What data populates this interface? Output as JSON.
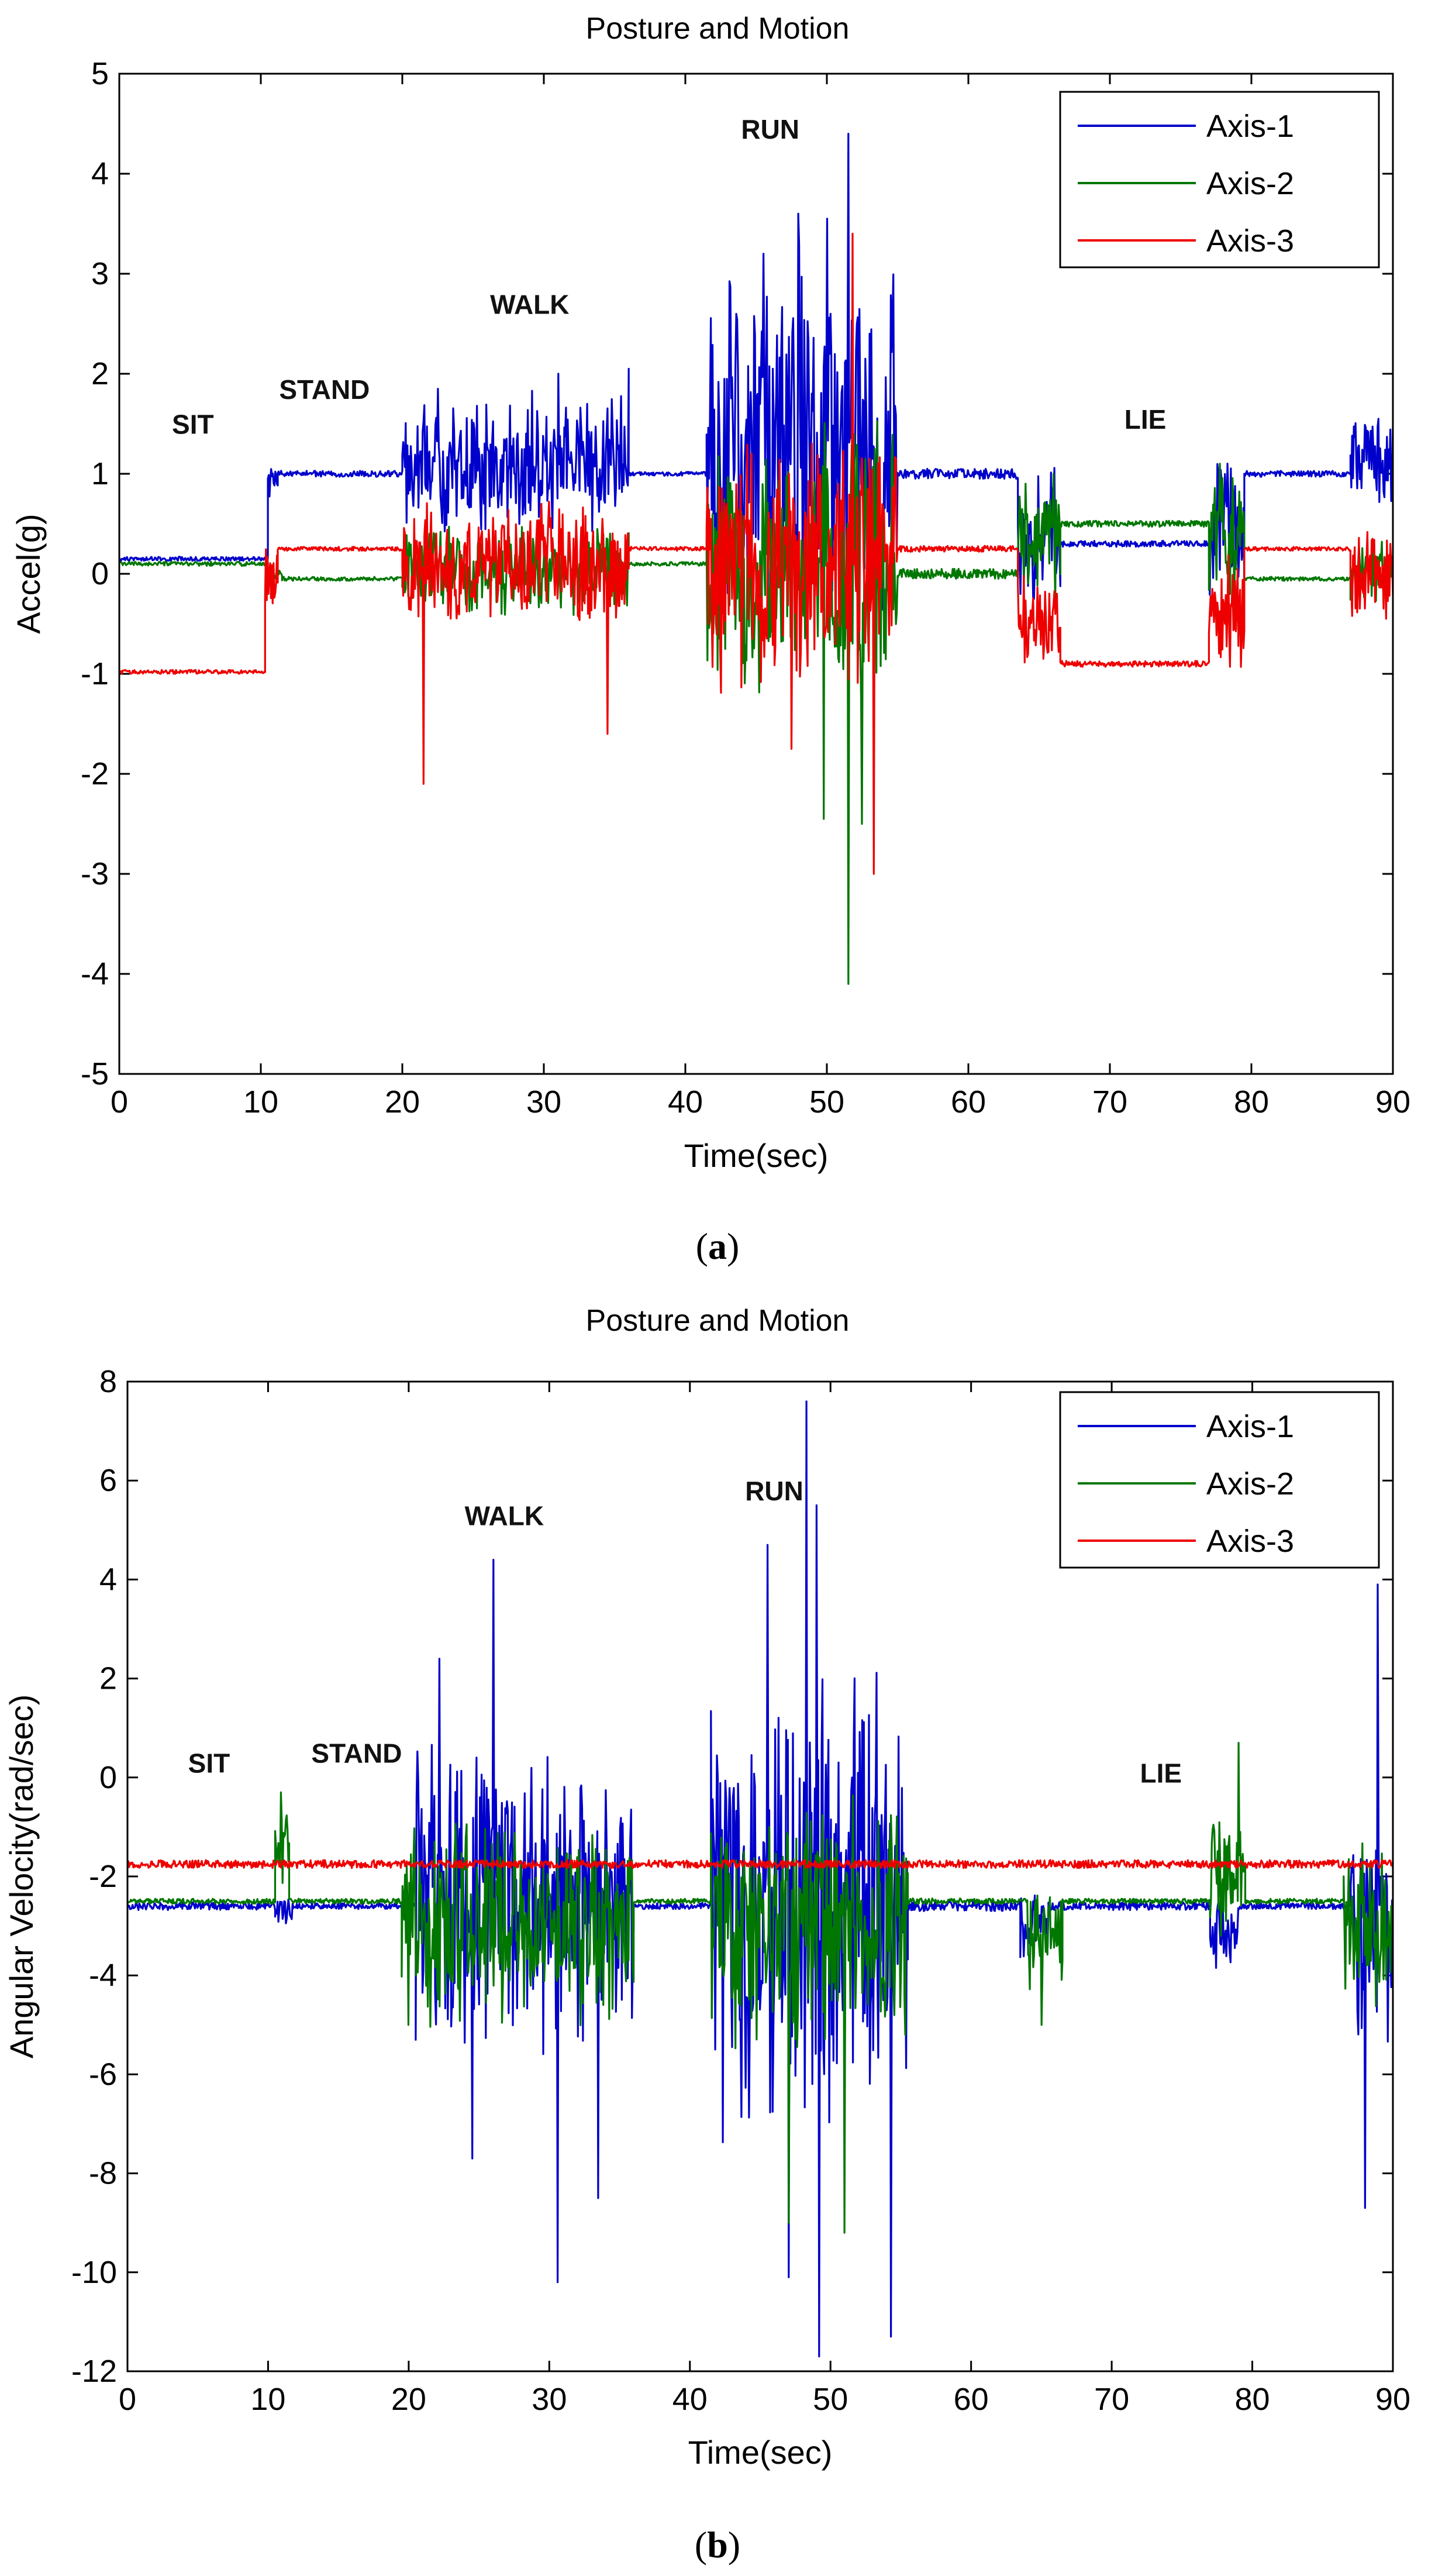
{
  "chart_data": [
    {
      "type": "line",
      "panel": "a",
      "caption_open": "(",
      "caption_letter": "a",
      "caption_close": ")",
      "title": "Posture and Motion",
      "xlabel": "Time(sec)",
      "ylabel": "Accel(g)",
      "xlim": [
        0,
        90
      ],
      "ylim": [
        -5,
        5
      ],
      "xticks": [
        0,
        10,
        20,
        30,
        40,
        50,
        60,
        70,
        80,
        90
      ],
      "yticks": [
        -5,
        -4,
        -3,
        -2,
        -1,
        0,
        1,
        2,
        3,
        4,
        5
      ],
      "legend_position": "top-right",
      "annotations": [
        {
          "text": "SIT",
          "x": 5.2,
          "y": 1.4
        },
        {
          "text": "STAND",
          "x": 14.5,
          "y": 1.75
        },
        {
          "text": "WALK",
          "x": 29,
          "y": 2.6
        },
        {
          "text": "RUN",
          "x": 46,
          "y": 4.35
        },
        {
          "text": "LIE",
          "x": 72.5,
          "y": 1.45
        }
      ],
      "series": [
        {
          "name": "Axis-1",
          "color": "#0000cc",
          "segments": [
            {
              "x0": 0,
              "x1": 10.5,
              "base": 0.15,
              "amp": 0.02
            },
            {
              "x0": 10.5,
              "x1": 11.2,
              "base": 0.9,
              "amp": 0.15
            },
            {
              "x0": 11.2,
              "x1": 20,
              "base": 1.0,
              "amp": 0.03
            },
            {
              "x0": 20,
              "x1": 36,
              "base": 1.05,
              "amp": 0.8
            },
            {
              "x0": 36,
              "x1": 41.5,
              "base": 1.0,
              "amp": 0.02
            },
            {
              "x0": 41.5,
              "x1": 55,
              "base": 1.3,
              "amp": 2.2
            },
            {
              "x0": 55,
              "x1": 63.5,
              "base": 1.0,
              "amp": 0.05
            },
            {
              "x0": 63.5,
              "x1": 66.5,
              "base": 0.3,
              "amp": 0.8
            },
            {
              "x0": 66.5,
              "x1": 77,
              "base": 0.3,
              "amp": 0.03
            },
            {
              "x0": 77,
              "x1": 79.5,
              "base": 0.5,
              "amp": 0.8
            },
            {
              "x0": 79.5,
              "x1": 87,
              "base": 1.0,
              "amp": 0.03
            },
            {
              "x0": 87,
              "x1": 90,
              "base": 1.1,
              "amp": 0.5
            }
          ],
          "spikes": [
            [
              51.5,
              4.4
            ],
            [
              50,
              3.55
            ],
            [
              48,
              3.6
            ],
            [
              45.5,
              3.2
            ],
            [
              53,
              2.4
            ],
            [
              36,
              2.05
            ],
            [
              22.5,
              1.85
            ],
            [
              31,
              2.0
            ],
            [
              89,
              1.55
            ]
          ]
        },
        {
          "name": "Axis-2",
          "color": "#007700",
          "segments": [
            {
              "x0": 0,
              "x1": 10.5,
              "base": 0.1,
              "amp": 0.02
            },
            {
              "x0": 10.5,
              "x1": 11.5,
              "base": 0.0,
              "amp": 0.05
            },
            {
              "x0": 11.5,
              "x1": 20,
              "base": -0.05,
              "amp": 0.02
            },
            {
              "x0": 20,
              "x1": 36,
              "base": 0.05,
              "amp": 0.5
            },
            {
              "x0": 36,
              "x1": 41.5,
              "base": 0.1,
              "amp": 0.02
            },
            {
              "x0": 41.5,
              "x1": 55,
              "base": 0.1,
              "amp": 1.5
            },
            {
              "x0": 55,
              "x1": 63.5,
              "base": 0.0,
              "amp": 0.05
            },
            {
              "x0": 63.5,
              "x1": 66.5,
              "base": 0.3,
              "amp": 0.7
            },
            {
              "x0": 66.5,
              "x1": 77,
              "base": 0.5,
              "amp": 0.03
            },
            {
              "x0": 77,
              "x1": 79.5,
              "base": 0.3,
              "amp": 0.8
            },
            {
              "x0": 79.5,
              "x1": 87,
              "base": -0.05,
              "amp": 0.02
            },
            {
              "x0": 87,
              "x1": 90,
              "base": 0.05,
              "amp": 0.4
            }
          ],
          "spikes": [
            [
              51.5,
              -4.1
            ],
            [
              49.8,
              -2.45
            ],
            [
              52.5,
              -2.5
            ],
            [
              77.8,
              1.1
            ],
            [
              66,
              1.0
            ]
          ]
        },
        {
          "name": "Axis-3",
          "color": "#ee0000",
          "segments": [
            {
              "x0": 0,
              "x1": 10.3,
              "base": -0.98,
              "amp": 0.02
            },
            {
              "x0": 10.3,
              "x1": 11.2,
              "base": 0.0,
              "amp": 0.3
            },
            {
              "x0": 11.2,
              "x1": 20,
              "base": 0.25,
              "amp": 0.02
            },
            {
              "x0": 20,
              "x1": 36,
              "base": 0.1,
              "amp": 0.7
            },
            {
              "x0": 36,
              "x1": 41.5,
              "base": 0.25,
              "amp": 0.02
            },
            {
              "x0": 41.5,
              "x1": 55,
              "base": 0.1,
              "amp": 1.4
            },
            {
              "x0": 55,
              "x1": 63.5,
              "base": 0.25,
              "amp": 0.03
            },
            {
              "x0": 63.5,
              "x1": 66.5,
              "base": -0.5,
              "amp": 0.5
            },
            {
              "x0": 66.5,
              "x1": 77,
              "base": -0.9,
              "amp": 0.03
            },
            {
              "x0": 77,
              "x1": 79.5,
              "base": -0.4,
              "amp": 0.7
            },
            {
              "x0": 79.5,
              "x1": 87,
              "base": 0.25,
              "amp": 0.02
            },
            {
              "x0": 87,
              "x1": 90,
              "base": 0.0,
              "amp": 0.5
            }
          ],
          "spikes": [
            [
              21.5,
              -2.1
            ],
            [
              51.8,
              3.4
            ],
            [
              53.3,
              -3.0
            ],
            [
              34.5,
              -1.6
            ],
            [
              47.5,
              -1.75
            ]
          ]
        }
      ]
    },
    {
      "type": "line",
      "panel": "b",
      "caption_open": "(",
      "caption_letter": "b",
      "caption_close": ")",
      "title": "Posture and Motion",
      "xlabel": "Time(sec)",
      "ylabel": "Angular Velocity(rad/sec)",
      "xlim": [
        0,
        90
      ],
      "ylim": [
        -12,
        8
      ],
      "xticks": [
        0,
        10,
        20,
        30,
        40,
        50,
        60,
        70,
        80,
        90
      ],
      "yticks": [
        -12,
        -10,
        -8,
        -6,
        -4,
        -2,
        0,
        2,
        4,
        6,
        8
      ],
      "legend_position": "top-right",
      "annotations": [
        {
          "text": "SIT",
          "x": 5.8,
          "y": 0.1
        },
        {
          "text": "STAND",
          "x": 16.3,
          "y": 0.3
        },
        {
          "text": "WALK",
          "x": 26.8,
          "y": 5.1
        },
        {
          "text": "RUN",
          "x": 46,
          "y": 5.6
        },
        {
          "text": "LIE",
          "x": 73.5,
          "y": -0.1
        }
      ],
      "series": [
        {
          "name": "Axis-1",
          "color": "#0000cc",
          "segments": [
            {
              "x0": 0,
              "x1": 10.5,
              "base": -2.6,
              "amp": 0.08
            },
            {
              "x0": 10.5,
              "x1": 11.8,
              "base": -2.7,
              "amp": 0.25
            },
            {
              "x0": 11.8,
              "x1": 20.5,
              "base": -2.6,
              "amp": 0.06
            },
            {
              "x0": 20.5,
              "x1": 36,
              "base": -2.5,
              "amp": 3.4
            },
            {
              "x0": 36,
              "x1": 41.5,
              "base": -2.6,
              "amp": 0.06
            },
            {
              "x0": 41.5,
              "x1": 55.5,
              "base": -2.5,
              "amp": 5.0
            },
            {
              "x0": 55.5,
              "x1": 63.5,
              "base": -2.6,
              "amp": 0.1
            },
            {
              "x0": 63.5,
              "x1": 65.5,
              "base": -3.0,
              "amp": 0.8
            },
            {
              "x0": 65.5,
              "x1": 77,
              "base": -2.6,
              "amp": 0.08
            },
            {
              "x0": 77,
              "x1": 79,
              "base": -3.2,
              "amp": 0.8
            },
            {
              "x0": 79,
              "x1": 87,
              "base": -2.6,
              "amp": 0.06
            },
            {
              "x0": 87,
              "x1": 90,
              "base": -3.0,
              "amp": 2.5
            }
          ],
          "spikes": [
            [
              48.3,
              7.6
            ],
            [
              49,
              5.5
            ],
            [
              26,
              4.4
            ],
            [
              45.5,
              4.7
            ],
            [
              30.6,
              -10.2
            ],
            [
              49.2,
              -11.7
            ],
            [
              54.3,
              -11.3
            ],
            [
              88,
              -8.7
            ],
            [
              88.9,
              3.9
            ],
            [
              22.2,
              2.4
            ],
            [
              24.5,
              -7.7
            ],
            [
              33.5,
              -8.5
            ],
            [
              47,
              -10.1
            ]
          ]
        },
        {
          "name": "Axis-2",
          "color": "#007700",
          "segments": [
            {
              "x0": 0,
              "x1": 10.5,
              "base": -2.5,
              "amp": 0.05
            },
            {
              "x0": 10.5,
              "x1": 11.5,
              "base": -1.5,
              "amp": 0.8
            },
            {
              "x0": 11.5,
              "x1": 19.5,
              "base": -2.5,
              "amp": 0.05
            },
            {
              "x0": 19.5,
              "x1": 36,
              "base": -3.0,
              "amp": 2.2
            },
            {
              "x0": 36,
              "x1": 41.5,
              "base": -2.5,
              "amp": 0.05
            },
            {
              "x0": 41.5,
              "x1": 55.5,
              "base": -3.0,
              "amp": 2.8
            },
            {
              "x0": 55.5,
              "x1": 64,
              "base": -2.5,
              "amp": 0.06
            },
            {
              "x0": 64,
              "x1": 66.5,
              "base": -3.2,
              "amp": 1.3
            },
            {
              "x0": 66.5,
              "x1": 77,
              "base": -2.5,
              "amp": 0.05
            },
            {
              "x0": 77,
              "x1": 79.5,
              "base": -2.0,
              "amp": 1.3
            },
            {
              "x0": 79.5,
              "x1": 86.5,
              "base": -2.5,
              "amp": 0.05
            },
            {
              "x0": 86.5,
              "x1": 90,
              "base": -3.0,
              "amp": 1.8
            }
          ],
          "spikes": [
            [
              10.9,
              -0.3
            ],
            [
              79,
              0.7
            ],
            [
              51,
              -9.2
            ],
            [
              20,
              -5.0
            ],
            [
              65,
              -5.0
            ],
            [
              47,
              -9.0
            ],
            [
              55.3,
              -5.2
            ]
          ]
        },
        {
          "name": "Axis-3",
          "color": "#ee0000",
          "segments": [
            {
              "x0": 0,
              "x1": 90,
              "base": -1.75,
              "amp": 0.08
            }
          ],
          "spikes": []
        }
      ]
    }
  ]
}
